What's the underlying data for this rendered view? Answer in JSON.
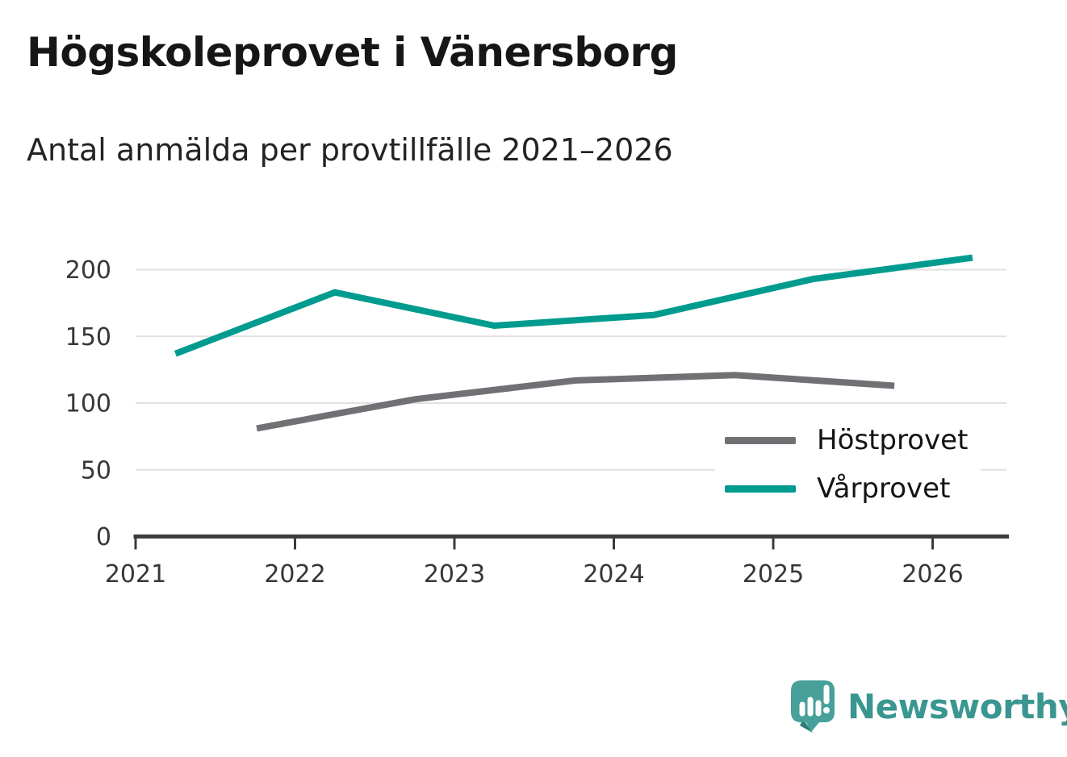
{
  "header": {
    "title": "Högskoleprovet i Vänersborg",
    "subtitle": "Antal anmälda per provtillfälle 2021–2026"
  },
  "chart_data": {
    "type": "line",
    "title": "Högskoleprovet i Vänersborg",
    "subtitle": "Antal anmälda per provtillfälle 2021–2026",
    "xlabel": "",
    "ylabel": "Antal anmälda",
    "x_ticks": [
      2021,
      2022,
      2023,
      2024,
      2025,
      2026
    ],
    "y_ticks": [
      0,
      50,
      100,
      150,
      200
    ],
    "ylim": [
      0,
      200
    ],
    "grid": "horizontal",
    "legend_position": "inside-right",
    "series": [
      {
        "id": "hostprovet",
        "name": "Höstprovet",
        "color": "#717074",
        "x": [
          2021.76,
          2022.76,
          2023.76,
          2024.76,
          2025.76
        ],
        "values": [
          81,
          103,
          117,
          121,
          113
        ]
      },
      {
        "id": "varprovet",
        "name": "Vårprovet",
        "color": "#009B8F",
        "x": [
          2021.25,
          2022.25,
          2023.25,
          2024.25,
          2025.25,
          2026.25
        ],
        "values": [
          137,
          183,
          158,
          166,
          193,
          209
        ]
      }
    ]
  },
  "colors": {
    "gridline": "#E1E1E1",
    "axis": "#3C3C3C",
    "tick_text": "#373737",
    "background": "#FFFFFF"
  },
  "footer": {
    "brand": "Newsworthy",
    "brand_color": "#3A9690",
    "logo_icon": "newsworthy-speech-bubble-chart-icon"
  }
}
